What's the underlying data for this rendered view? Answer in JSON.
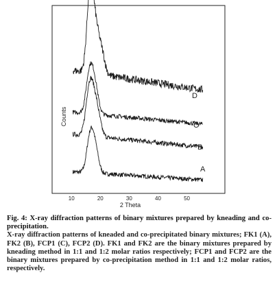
{
  "chart_data": {
    "type": "line",
    "xlabel": "2 Theta",
    "ylabel": "Counts",
    "xlim": [
      9,
      57
    ],
    "x_ticks": [
      "10",
      "20",
      "30",
      "40",
      "50"
    ],
    "x_tick_values": [
      10,
      20,
      30,
      40,
      50
    ],
    "grid": false,
    "legend": "none",
    "line_color": "#1a1a1a",
    "series": [
      {
        "label": "A",
        "peaks": [
          [
            16.2,
            0.55
          ],
          [
            17.4,
            0.45
          ],
          [
            18.6,
            0.3
          ]
        ],
        "baseline_start": 0.25,
        "baseline_end": 0.08
      },
      {
        "label": "B",
        "peaks": [
          [
            15.8,
            0.6
          ],
          [
            17.0,
            0.55
          ],
          [
            18.2,
            0.4
          ],
          [
            19.5,
            0.25
          ]
        ],
        "baseline_start": 0.35,
        "baseline_end": 0.1
      },
      {
        "label": "C",
        "peaks": [
          [
            16.0,
            0.65
          ],
          [
            17.3,
            0.5
          ],
          [
            18.5,
            0.35
          ]
        ],
        "baseline_start": 0.35,
        "baseline_end": 0.1
      },
      {
        "label": "D",
        "peaks": [
          [
            16.5,
            1.0
          ],
          [
            18.5,
            0.45
          ],
          [
            20.5,
            0.25
          ]
        ],
        "baseline_start": 0.35,
        "baseline_end": 0.12
      }
    ]
  },
  "caption": {
    "title": "Fig. 4: X-ray diffraction patterns of binary mixtures prepared by kneading and co-precipitation.",
    "description": "X-ray diffraction patterns of kneaded and co-precipitated binary mixtures; FK1 (A), FK2 (B), FCP1 (C), FCP2 (D). FK1 and FK2 are the binary mixtures prepared by kneading method in 1:1 and 1:2 molar ratios respectively; FCP1 and FCP2 are the binary mixtures prepared by co-precipitation method in 1:1 and 1:2 molar ratios, respectively."
  }
}
